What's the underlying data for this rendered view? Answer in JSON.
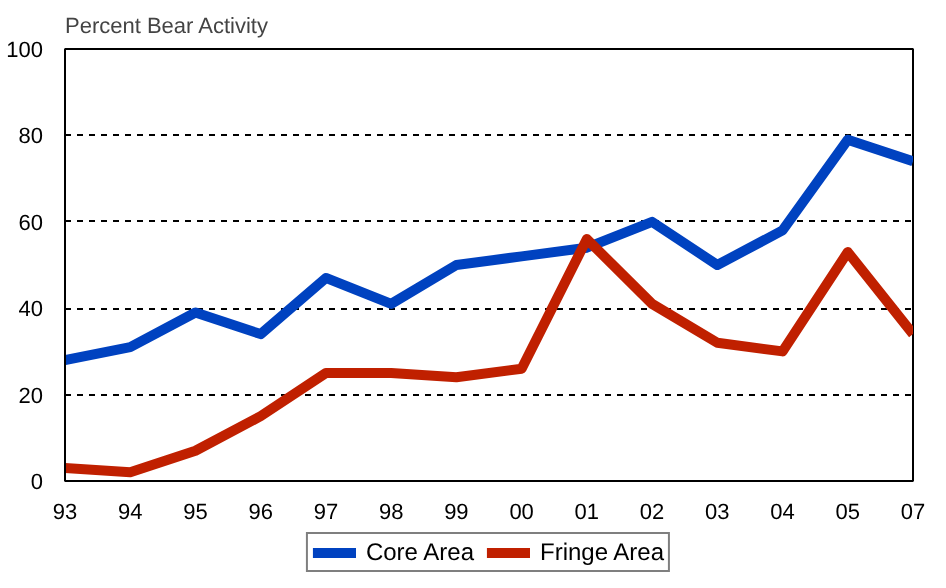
{
  "chart_data": {
    "type": "line",
    "ylabel": "Percent Bear Activity",
    "categories": [
      "93",
      "94",
      "95",
      "96",
      "97",
      "98",
      "99",
      "00",
      "01",
      "02",
      "03",
      "04",
      "05",
      "07"
    ],
    "series": [
      {
        "name": "Core Area",
        "color": "#0042c0",
        "values": [
          28,
          31,
          39,
          34,
          47,
          41,
          50,
          52,
          54,
          60,
          50,
          58,
          79,
          74
        ]
      },
      {
        "name": "Fringe Area",
        "color": "#c02000",
        "values": [
          3,
          2,
          7,
          15,
          25,
          25,
          24,
          26,
          56,
          41,
          32,
          30,
          53,
          34
        ]
      }
    ],
    "ylim": [
      0,
      100
    ],
    "yticks": [
      0,
      20,
      40,
      60,
      80,
      100
    ],
    "grid": "y",
    "legend": "bottom",
    "marker": "none",
    "line_style": "solid"
  }
}
